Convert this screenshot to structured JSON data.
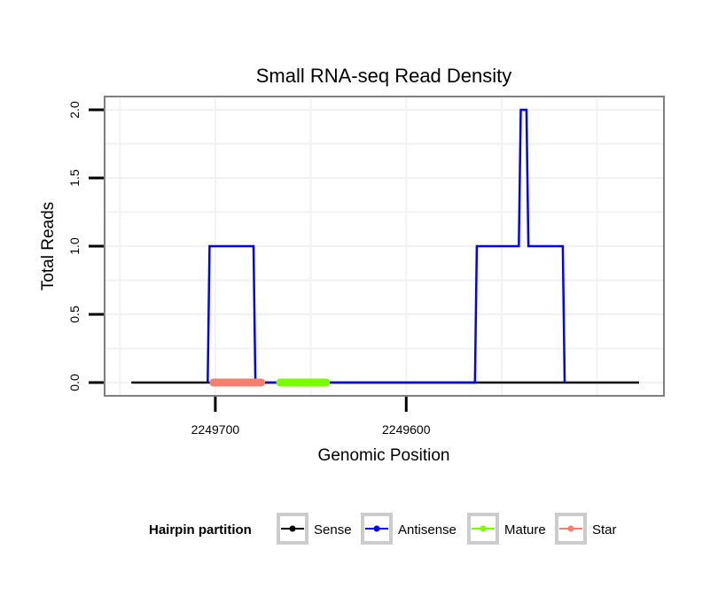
{
  "chart_data": {
    "type": "line",
    "title": "Small RNA-seq Read Density",
    "xlabel": "Genomic Position",
    "ylabel": "Total Reads",
    "x_reversed": true,
    "xlim": [
      2249758,
      2249465
    ],
    "ylim": [
      0,
      2
    ],
    "x_ticks": [
      2249700,
      2249600
    ],
    "x_tick_labels": [
      "2249700",
      "2249600"
    ],
    "y_ticks": [
      0,
      0.5,
      1,
      1.5,
      2
    ],
    "y_tick_labels": [
      "0.0",
      "0.5",
      "1.0",
      "1.5",
      "2.0"
    ],
    "grid": true,
    "series": [
      {
        "name": "Sense",
        "color": "#000000",
        "points": [
          [
            2249744,
            0
          ],
          [
            2249478,
            0
          ]
        ]
      },
      {
        "name": "Antisense",
        "color": "#0000ff",
        "points": [
          [
            2249704,
            0
          ],
          [
            2249703,
            1
          ],
          [
            2249680,
            1
          ],
          [
            2249679,
            0
          ],
          [
            2249564,
            0
          ],
          [
            2249563,
            1
          ],
          [
            2249541,
            1
          ],
          [
            2249540,
            2
          ],
          [
            2249537,
            2
          ],
          [
            2249536,
            1
          ],
          [
            2249518,
            1
          ],
          [
            2249517,
            0
          ]
        ]
      },
      {
        "name": "Mature",
        "color": "#7cfc00",
        "points": [
          [
            2249666,
            0
          ],
          [
            2249642,
            0
          ]
        ]
      },
      {
        "name": "Star",
        "color": "#f08070",
        "points": [
          [
            2249701,
            0
          ],
          [
            2249676,
            0
          ]
        ]
      }
    ],
    "legend": {
      "title": "Hairpin partition",
      "position": "bottom",
      "entries": [
        {
          "label": "Sense",
          "color": "#000000"
        },
        {
          "label": "Antisense",
          "color": "#0000ff"
        },
        {
          "label": "Mature",
          "color": "#7cfc00"
        },
        {
          "label": "Star",
          "color": "#f08070"
        }
      ]
    }
  }
}
